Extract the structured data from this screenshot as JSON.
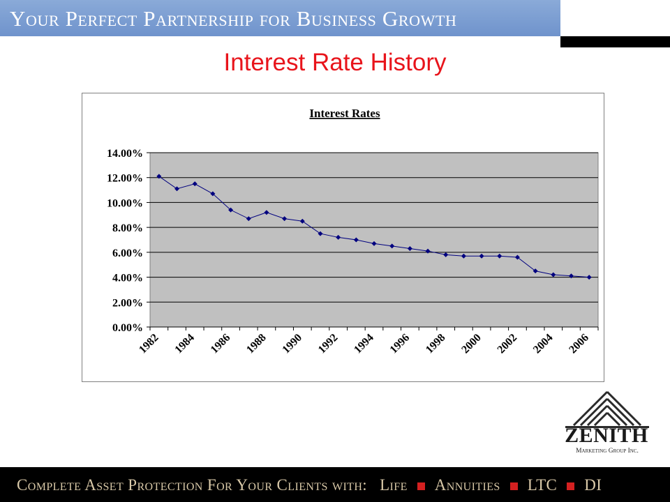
{
  "header": {
    "banner_text": "Your Perfect Partnership for Business Growth",
    "page_title": "Interest Rate History"
  },
  "colors": {
    "banner_blue": "#7397cf",
    "title_red": "#e8141b",
    "plot_area": "#c0c0c0",
    "series_line": "#00007f",
    "footer_text": "#d9c9a8",
    "footer_square": "#d42020"
  },
  "chart_data": {
    "type": "line",
    "title": "Interest Rates",
    "xlabel": "",
    "ylabel": "",
    "ylim": [
      0,
      0.14
    ],
    "y_ticks": [
      "14.00%",
      "12.00%",
      "10.00%",
      "8.00%",
      "6.00%",
      "4.00%",
      "2.00%",
      "0.00%"
    ],
    "y_tick_values": [
      0.14,
      0.12,
      0.1,
      0.08,
      0.06,
      0.04,
      0.02,
      0
    ],
    "x_tick_labels": [
      "1982",
      "1984",
      "1986",
      "1988",
      "1990",
      "1992",
      "1994",
      "1996",
      "1998",
      "2000",
      "2002",
      "2004",
      "2006"
    ],
    "x": [
      1982,
      1983,
      1984,
      1985,
      1986,
      1987,
      1988,
      1989,
      1990,
      1991,
      1992,
      1993,
      1994,
      1995,
      1996,
      1997,
      1998,
      1999,
      2000,
      2001,
      2002,
      2003,
      2004,
      2005,
      2006
    ],
    "series": [
      {
        "values": [
          0.121,
          0.111,
          0.115,
          0.107,
          0.094,
          0.087,
          0.092,
          0.087,
          0.085,
          0.075,
          0.072,
          0.07,
          0.067,
          0.065,
          0.063,
          0.061,
          0.058,
          0.057,
          0.057,
          0.057,
          0.056,
          0.045,
          0.042,
          0.041,
          0.04
        ]
      }
    ],
    "grid": true,
    "legend": "none"
  },
  "logo": {
    "name": "ZENITH",
    "subtitle": "Marketing Group Inc."
  },
  "footer": {
    "lead": "Complete Asset Protection For Your Clients with:",
    "items": [
      "Life",
      "Annuities",
      "LTC",
      "DI"
    ]
  }
}
